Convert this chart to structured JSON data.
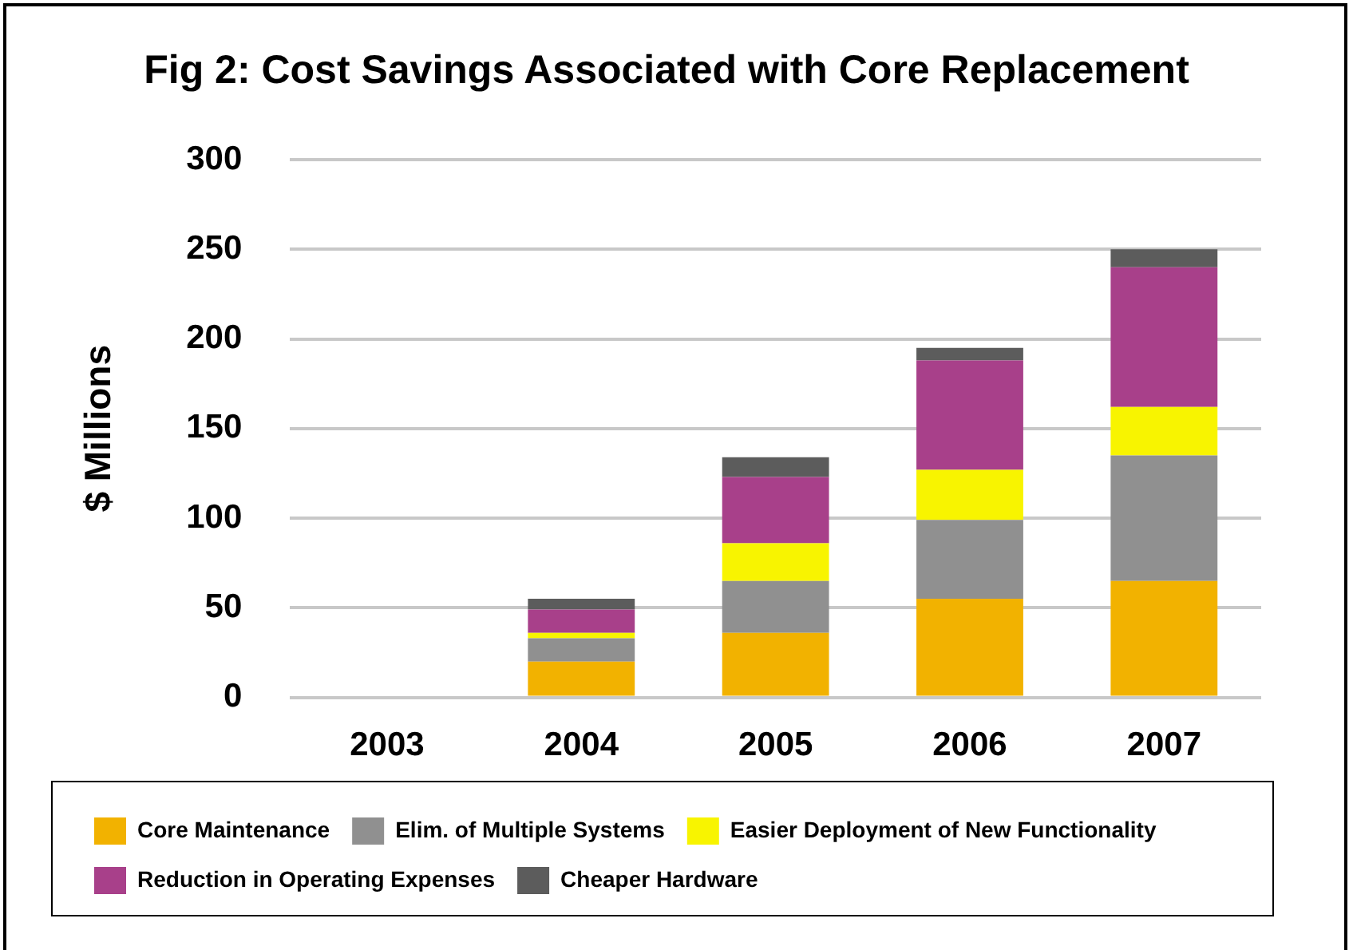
{
  "chart_data": {
    "type": "bar",
    "stacked": true,
    "title": "Fig 2: Cost Savings Associated with Core Replacement",
    "ylabel": "$ Millions",
    "categories": [
      "2003",
      "2004",
      "2005",
      "2006",
      "2007"
    ],
    "series": [
      {
        "name": "Core Maintenance",
        "color": "#f2b200",
        "values": [
          null,
          20,
          36,
          55,
          65
        ]
      },
      {
        "name": "Elim. of Multiple Systems",
        "color": "#909090",
        "values": [
          null,
          13,
          29,
          44,
          70
        ]
      },
      {
        "name": "Easier Deployment of New Functionality",
        "color": "#f8f400",
        "values": [
          null,
          3,
          21,
          28,
          27
        ]
      },
      {
        "name": "Reduction in Operating Expenses",
        "color": "#a8408a",
        "values": [
          null,
          13,
          37,
          61,
          78
        ]
      },
      {
        "name": "Cheaper Hardware",
        "color": "#5c5c5c",
        "values": [
          null,
          6,
          11,
          7,
          10
        ]
      }
    ],
    "ylim": [
      0,
      300
    ],
    "yticks": [
      0,
      50,
      100,
      150,
      200,
      250,
      300
    ],
    "grid": "y",
    "legend": "bottom"
  }
}
